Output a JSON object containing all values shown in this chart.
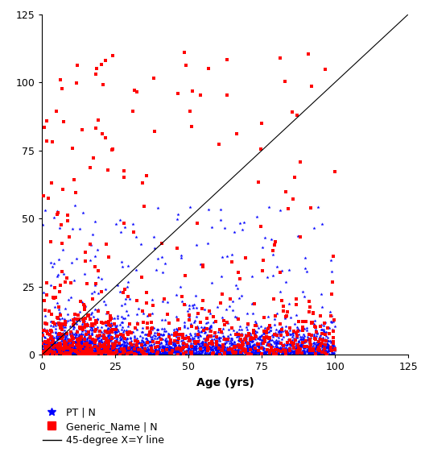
{
  "title": "",
  "xlabel": "Age (yrs)",
  "ylabel": "",
  "xlim": [
    0,
    125
  ],
  "ylim": [
    0,
    125
  ],
  "xticks": [
    0,
    25,
    50,
    75,
    100,
    125
  ],
  "yticks": [
    0,
    25,
    50,
    75,
    100,
    125
  ],
  "blue_color": "#0000ff",
  "red_color": "#ff0000",
  "line_color": "#000000",
  "legend_labels": [
    "PT | N",
    "Generic_Name | N",
    "45-degree X=Y line"
  ],
  "n_blue": 3000,
  "n_red": 800
}
